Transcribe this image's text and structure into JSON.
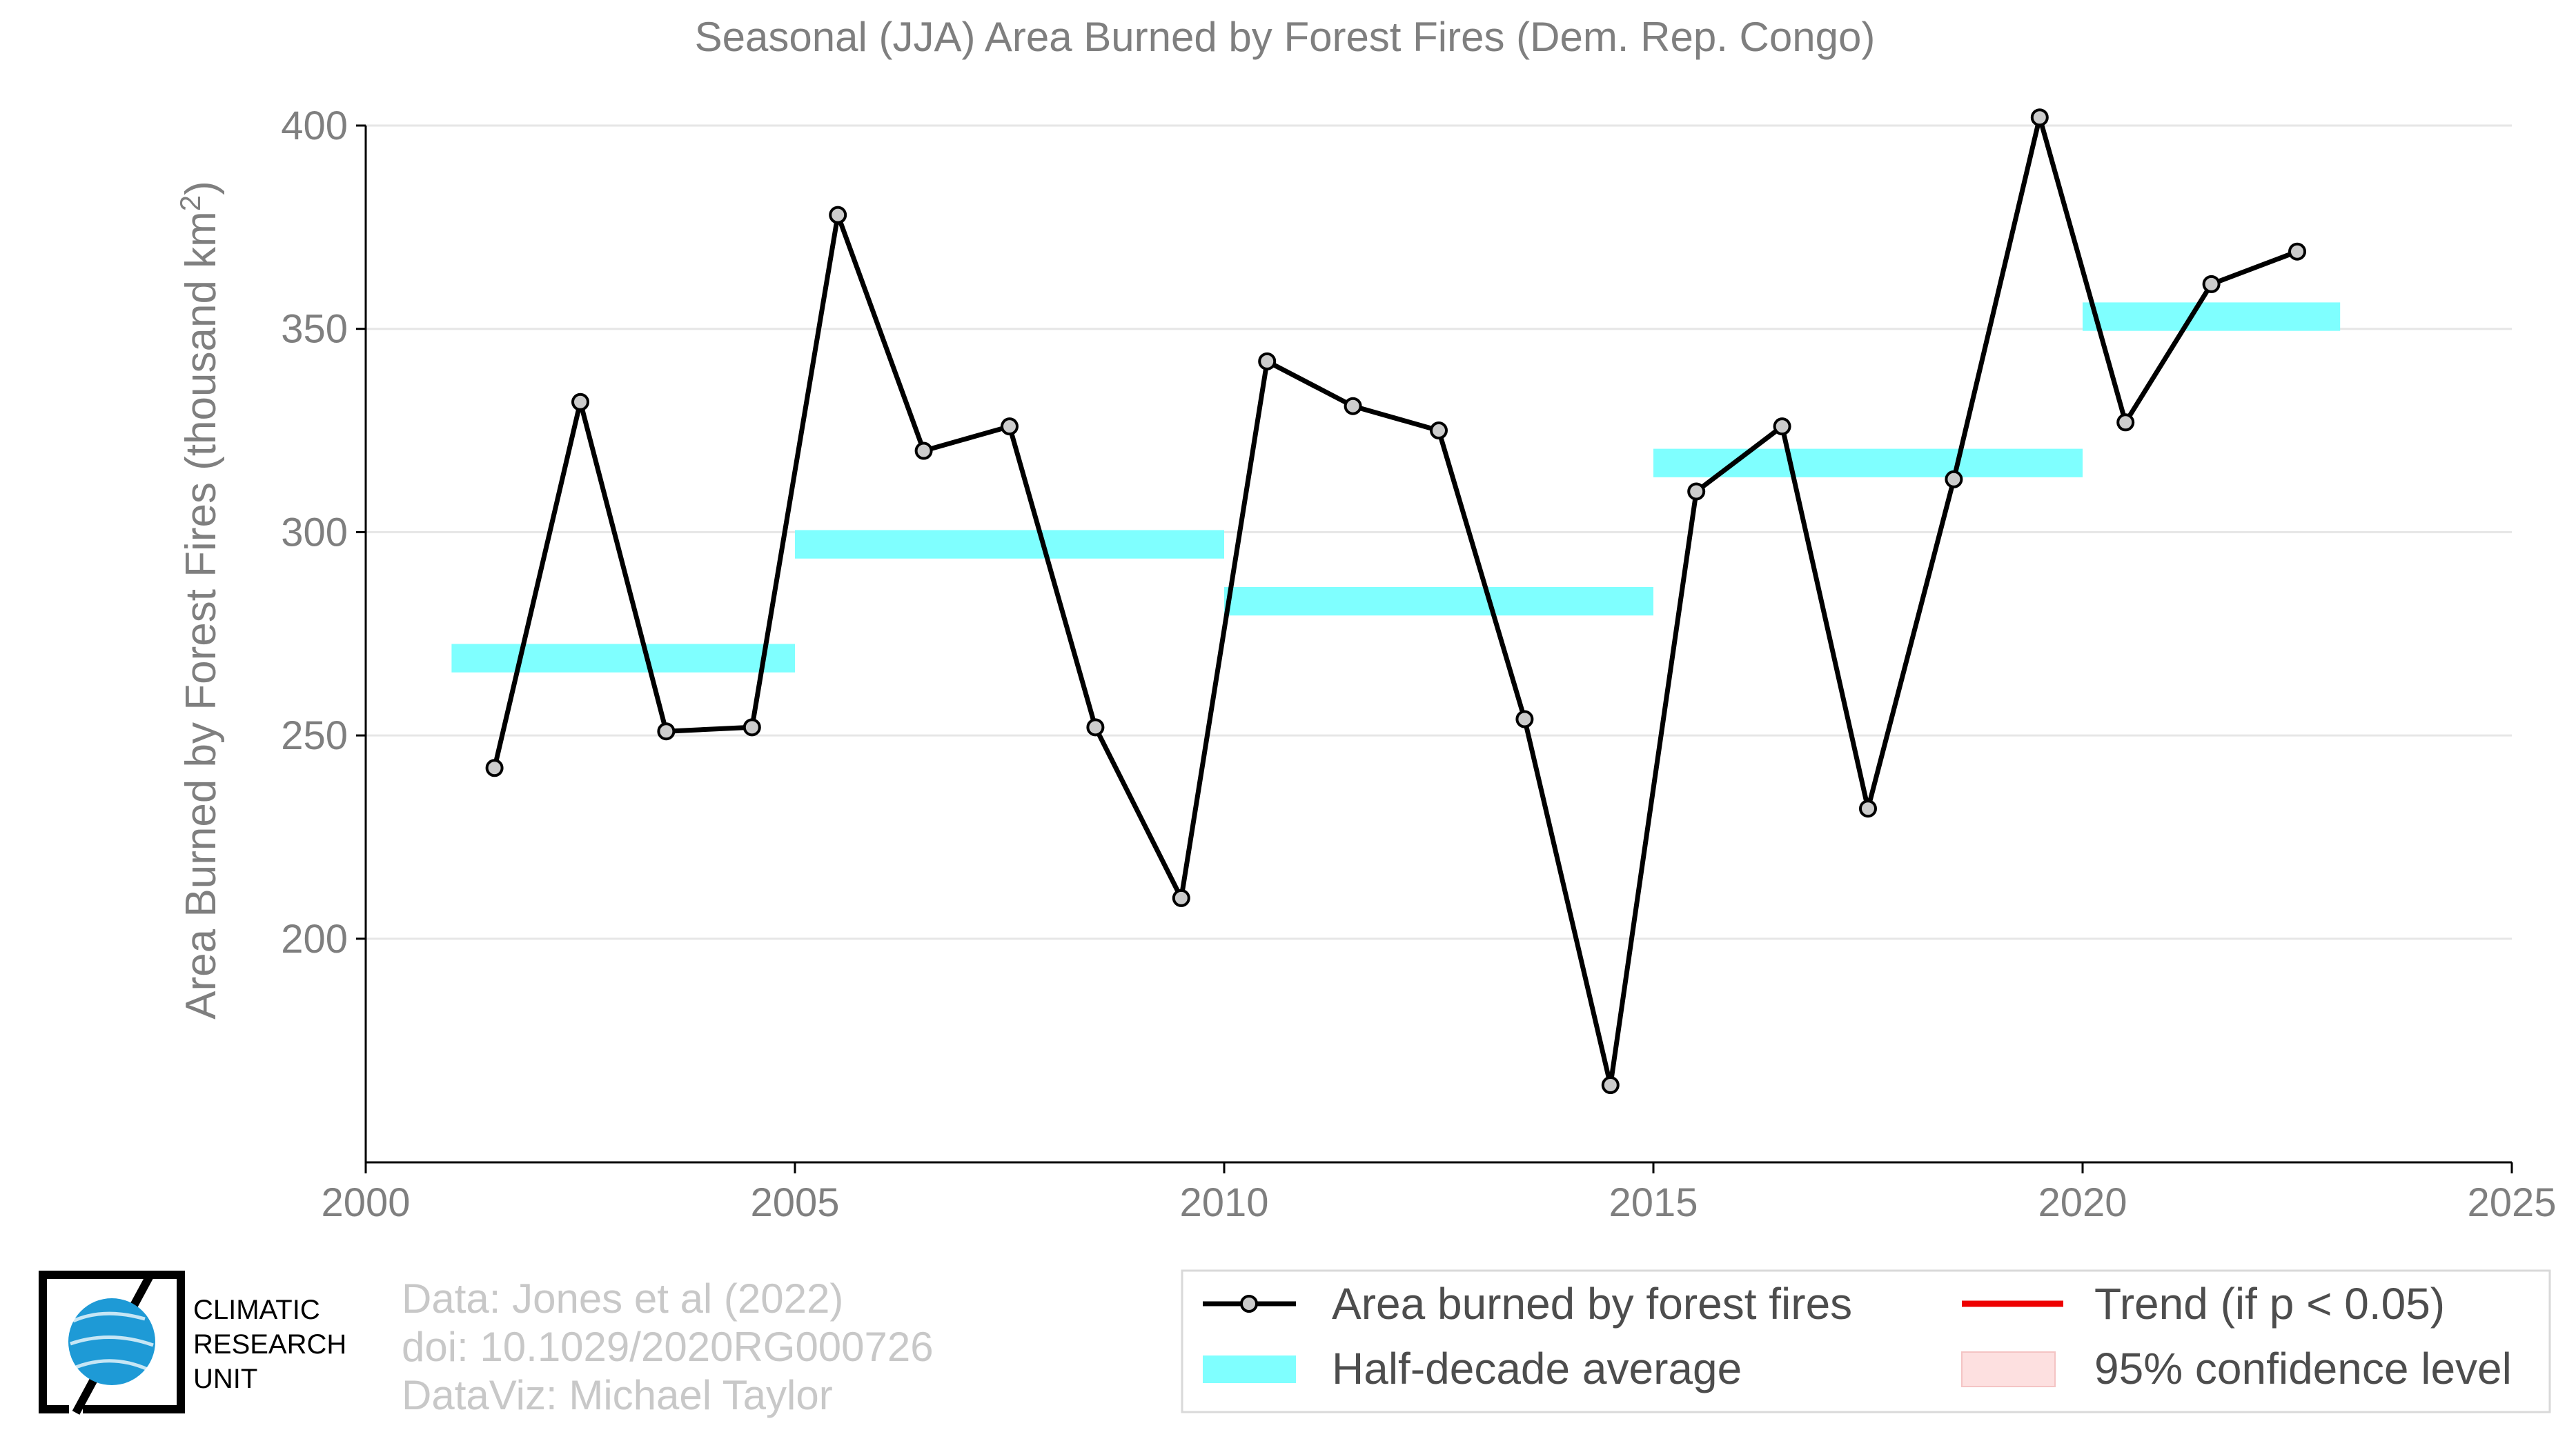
{
  "colors": {
    "series_line": "#000000",
    "marker_fill": "#cccccc",
    "half_decade": "#7fffff",
    "trend": "#ee0000",
    "confidence": "#fde0e0",
    "logo_blue": "#1e9ad6"
  },
  "chart_data": {
    "type": "line",
    "title": "Seasonal (JJA) Area Burned by Forest Fires (Dem. Rep. Congo)",
    "ylabel_main": "Area Burned by Forest Fires (thousand km",
    "ylabel_sup": "2",
    "ylabel_close": ")",
    "xlim": [
      2000,
      2025
    ],
    "ylim": [
      145,
      400
    ],
    "x_ticks": [
      2000,
      2005,
      2010,
      2015,
      2020,
      2025
    ],
    "x_tick_labels": [
      "2000",
      "2005",
      "2010",
      "2015",
      "2020",
      "2025"
    ],
    "y_ticks": [
      200,
      250,
      300,
      350,
      400
    ],
    "y_tick_labels": [
      "200",
      "250",
      "300",
      "350",
      "400"
    ],
    "grid": "horizontal",
    "legend_placement": "bottom-right",
    "series": [
      {
        "name": "Area burned by forest fires",
        "x": [
          2001.5,
          2002.5,
          2003.5,
          2004.5,
          2005.5,
          2006.5,
          2007.5,
          2008.5,
          2009.5,
          2010.5,
          2011.5,
          2012.5,
          2013.5,
          2014.5,
          2015.5,
          2016.5,
          2017.5,
          2018.5,
          2019.5,
          2020.5,
          2021.5,
          2022.5
        ],
        "values": [
          242,
          332,
          251,
          252,
          378,
          320,
          326,
          252,
          210,
          342,
          331,
          325,
          254,
          164,
          310,
          326,
          232,
          313,
          402,
          327,
          361,
          369
        ]
      }
    ],
    "half_decade_average": [
      {
        "start": 2001,
        "end": 2005,
        "value": 269
      },
      {
        "start": 2005,
        "end": 2010,
        "value": 297
      },
      {
        "start": 2010,
        "end": 2015,
        "value": 283
      },
      {
        "start": 2015,
        "end": 2020,
        "value": 317
      },
      {
        "start": 2020,
        "end": 2023,
        "value": 353
      }
    ],
    "legend": [
      {
        "key": "series",
        "label": "Area burned by forest fires"
      },
      {
        "key": "trend",
        "label": "Trend (if p < 0.05)"
      },
      {
        "key": "half_decade",
        "label": "Half-decade average"
      },
      {
        "key": "confidence",
        "label": "95% confidence level"
      }
    ]
  },
  "credits": [
    "Data: Jones et al (2022)",
    "doi: 10.1029/2020RG000726",
    "DataViz: Michael Taylor"
  ],
  "logo": {
    "lines": [
      "CLIMATIC",
      "RESEARCH",
      "UNIT"
    ],
    "icon": "globe-icon"
  }
}
